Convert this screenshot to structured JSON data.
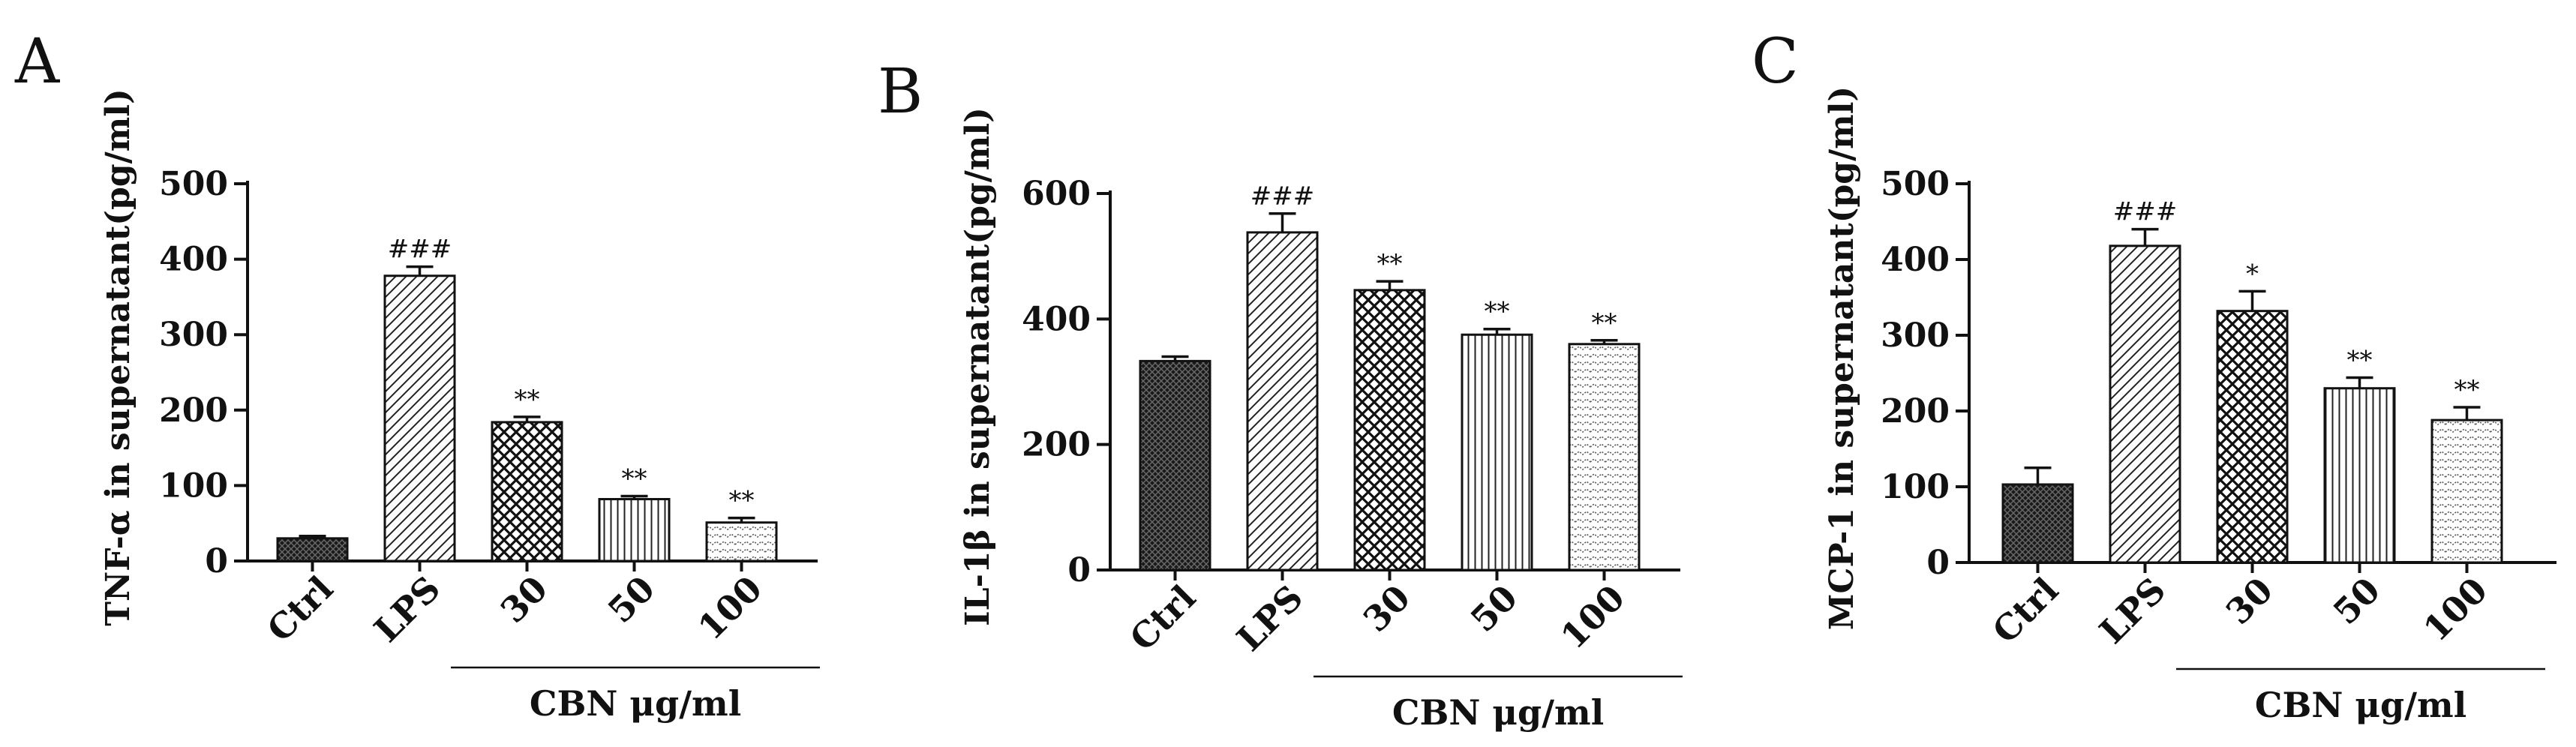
{
  "figure": {
    "group_label": "CBN μg/ml",
    "categories": [
      "Ctrl",
      "LPS",
      "30",
      "50",
      "100"
    ]
  },
  "chart_data": [
    {
      "type": "bar",
      "panel": "A",
      "ylabel": "TNF-α in supernatant(pg/ml)",
      "ylim": [
        0,
        500
      ],
      "yticks": [
        0,
        100,
        200,
        300,
        400,
        500
      ],
      "categories": [
        "Ctrl",
        "LPS",
        "30",
        "50",
        "100"
      ],
      "values": [
        30,
        378,
        184,
        82,
        51
      ],
      "errors": [
        3,
        12,
        7,
        4,
        6
      ],
      "annotations": [
        "",
        "###",
        "**",
        "**",
        "**"
      ],
      "group_label": "CBN μg/ml"
    },
    {
      "type": "bar",
      "panel": "B",
      "ylabel": "IL-1β in supernatant(pg/ml)",
      "ylim": [
        0,
        600
      ],
      "yticks": [
        0,
        200,
        400,
        600
      ],
      "categories": [
        "Ctrl",
        "LPS",
        "30",
        "50",
        "100"
      ],
      "values": [
        333,
        538,
        446,
        375,
        360
      ],
      "errors": [
        7,
        30,
        14,
        9,
        6
      ],
      "annotations": [
        "",
        "###",
        "**",
        "**",
        "**"
      ],
      "group_label": "CBN μg/ml"
    },
    {
      "type": "bar",
      "panel": "C",
      "ylabel": "MCP-1 in supernatant(pg/ml)",
      "ylim": [
        0,
        500
      ],
      "yticks": [
        0,
        100,
        200,
        300,
        400,
        500
      ],
      "categories": [
        "Ctrl",
        "LPS",
        "30",
        "50",
        "100"
      ],
      "values": [
        103,
        418,
        332,
        230,
        188
      ],
      "errors": [
        22,
        22,
        26,
        14,
        17
      ],
      "annotations": [
        "",
        "###",
        "*",
        "**",
        "**"
      ],
      "group_label": "CBN μg/ml"
    }
  ]
}
